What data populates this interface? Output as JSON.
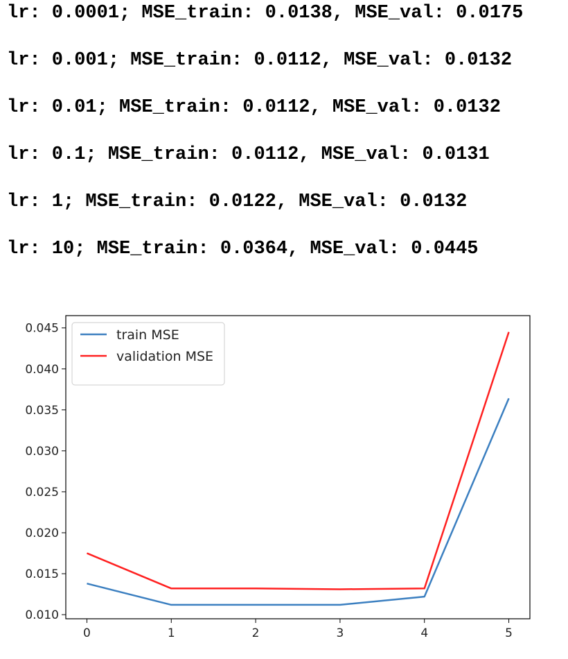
{
  "log_lines": [
    "lr: 0.0001; MSE_train: 0.0138, MSE_val: 0.0175",
    "lr: 0.001; MSE_train: 0.0112, MSE_val: 0.0132",
    "lr: 0.01; MSE_train: 0.0112, MSE_val: 0.0132",
    "lr: 0.1; MSE_train: 0.0112, MSE_val: 0.0131",
    "lr: 1; MSE_train: 0.0122, MSE_val: 0.0132",
    "lr: 10; MSE_train: 0.0364, MSE_val: 0.0445"
  ],
  "chart_data": {
    "type": "line",
    "title": "",
    "xlabel": "",
    "ylabel": "",
    "x": [
      0,
      1,
      2,
      3,
      4,
      5
    ],
    "x_ticks": [
      "0",
      "1",
      "2",
      "3",
      "4",
      "5"
    ],
    "y_ticks": [
      "0.010",
      "0.015",
      "0.020",
      "0.025",
      "0.030",
      "0.035",
      "0.040",
      "0.045"
    ],
    "ylim": [
      0.0095,
      0.0465
    ],
    "xlim": [
      -0.25,
      5.25
    ],
    "grid": false,
    "legend_position": "upper-left",
    "series": [
      {
        "name": "train MSE",
        "color": "#3b7fc0",
        "values": [
          0.0138,
          0.0112,
          0.0112,
          0.0112,
          0.0122,
          0.0364
        ]
      },
      {
        "name": "validation MSE",
        "color": "#ff2020",
        "values": [
          0.0175,
          0.0132,
          0.0132,
          0.0131,
          0.0132,
          0.0445
        ]
      }
    ]
  }
}
